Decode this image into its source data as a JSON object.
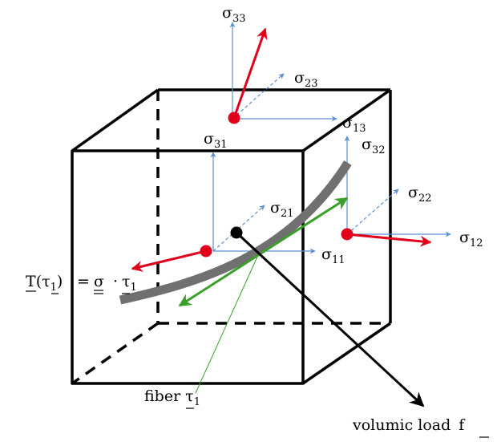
{
  "labels": {
    "s33": {
      "base": "σ",
      "sub": "33"
    },
    "s23": {
      "base": "σ",
      "sub": "23"
    },
    "s13": {
      "base": "σ",
      "sub": "13"
    },
    "s31": {
      "base": "σ",
      "sub": "31"
    },
    "s32": {
      "base": "σ",
      "sub": "32"
    },
    "s22": {
      "base": "σ",
      "sub": "22"
    },
    "s21": {
      "base": "σ",
      "sub": "21"
    },
    "s11": {
      "base": "σ",
      "sub": "11"
    },
    "s12": {
      "base": "σ",
      "sub": "12"
    },
    "traction_T": "T",
    "traction_open": "(",
    "traction_tau": "τ",
    "traction_tau_sub": "1",
    "traction_close": ")",
    "equals": "=",
    "sigma": "σ",
    "dot": "·",
    "rhs_tau": "τ",
    "rhs_tau_sub": "1",
    "fiber_word": "fiber",
    "fiber_tau": "τ",
    "fiber_tau_sub": "1",
    "load_words": "volumic load",
    "load_f": "f"
  },
  "colors": {
    "stress_axis": "#5b8fd0",
    "traction_vector": "#e0001b",
    "fiber_tangent": "#3aa02a",
    "fiber": "#707070",
    "cube": "#000000",
    "point": "#e0001b"
  }
}
